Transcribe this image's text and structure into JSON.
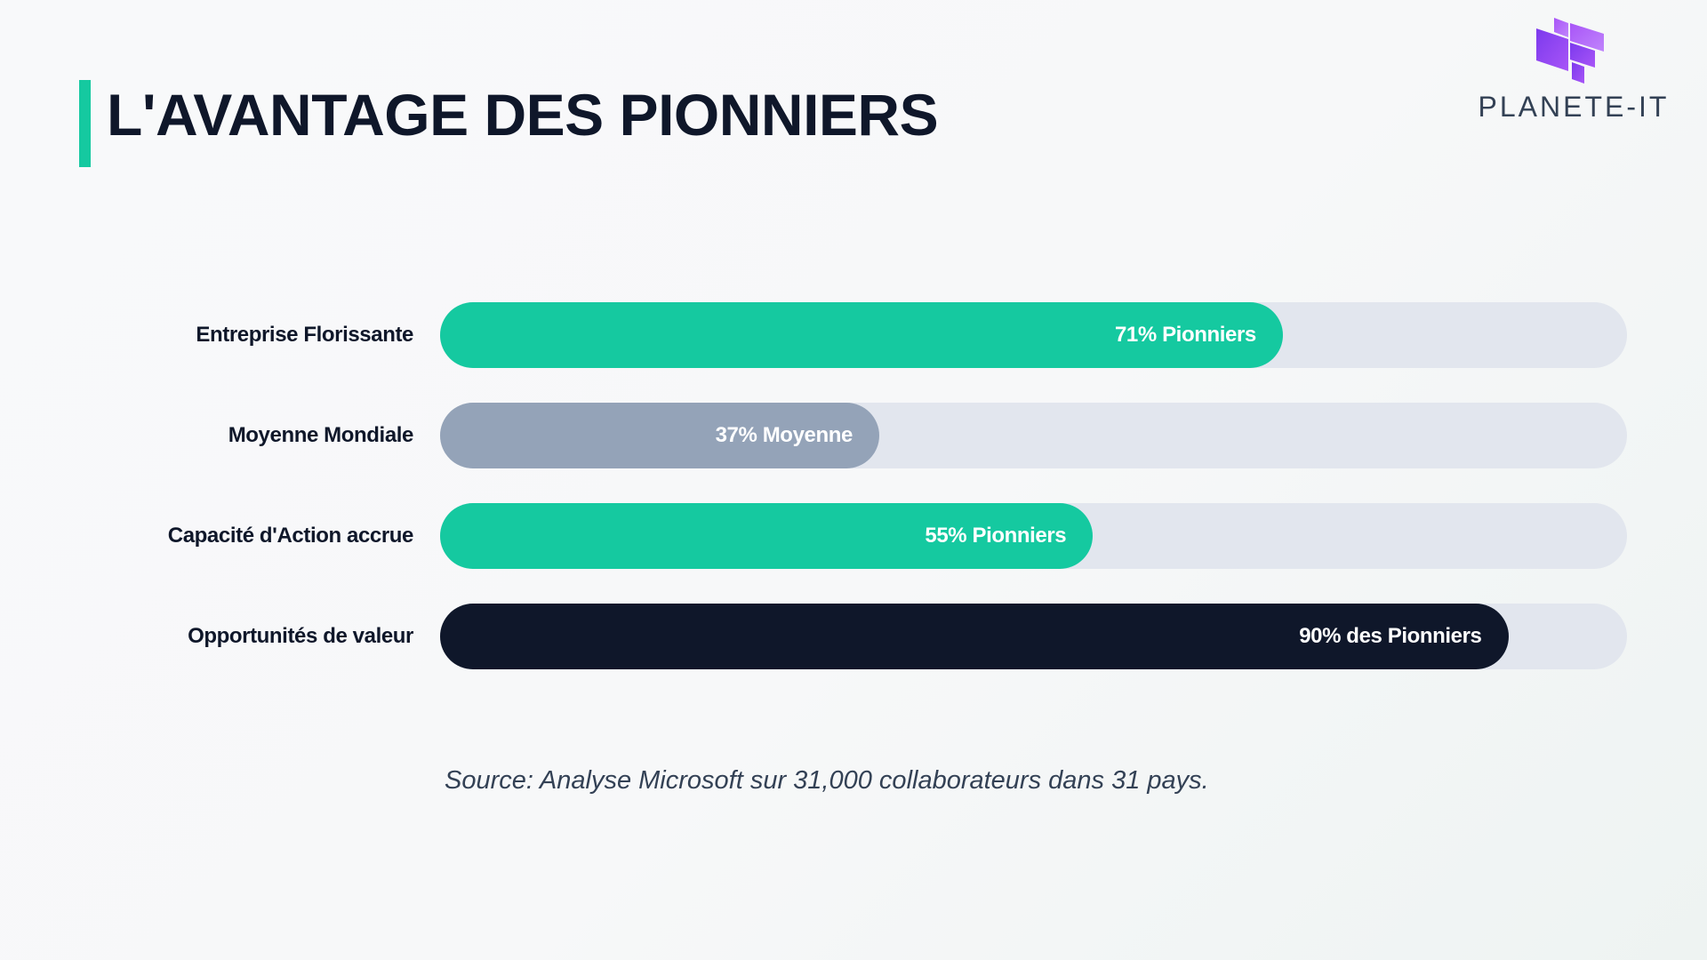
{
  "slide": {
    "title": "L'AVANTAGE DES PIONNIERS",
    "source": "Source: Analyse Microsoft sur 31,000 collaborateurs dans 31 pays."
  },
  "logo": {
    "text": "PLANETE-IT",
    "colors": [
      "#7c3aed",
      "#8b5cf6",
      "#a855f7",
      "#c084fc"
    ]
  },
  "colors": {
    "accent": "#15c9a0",
    "average": "#94a3b8",
    "dark": "#0f172a",
    "track": "#e2e6ee"
  },
  "chart_data": {
    "type": "bar",
    "orientation": "horizontal",
    "categories": [
      "Entreprise Florissante",
      "Moyenne Mondiale",
      "Capacité d'Action accrue",
      "Opportunités de valeur"
    ],
    "values": [
      71,
      37,
      55,
      90
    ],
    "data_labels": [
      "71% Pionniers",
      "37% Moyenne",
      "55% Pionniers",
      "90% des Pionniers"
    ],
    "bar_colors": [
      "#15c9a0",
      "#94a3b8",
      "#15c9a0",
      "#0f172a"
    ],
    "xlim": [
      0,
      100
    ],
    "grid": false,
    "legend": "none"
  }
}
